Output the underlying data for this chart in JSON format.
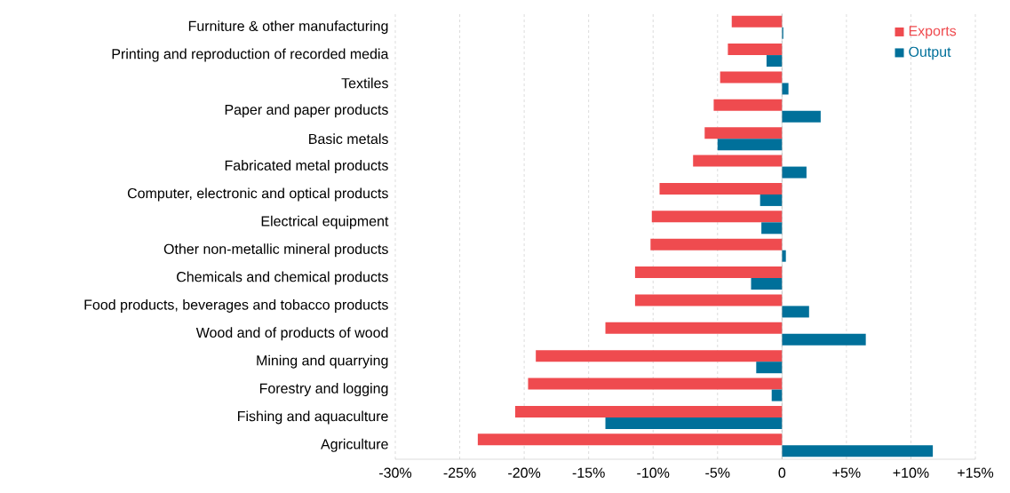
{
  "chart_data": {
    "type": "bar",
    "orientation": "horizontal",
    "categories": [
      "Furniture & other manufacturing",
      "Printing and reproduction of recorded media",
      "Textiles",
      "Paper and paper products",
      "Basic metals",
      "Fabricated metal products",
      "Computer, electronic and optical products",
      "Electrical equipment",
      "Other non-metallic mineral products",
      "Chemicals and chemical products",
      "Food products, beverages and tobacco products",
      "Wood and of products of wood",
      "Mining and quarrying",
      "Forestry and logging",
      "Fishing and aquaculture",
      "Agriculture"
    ],
    "series": [
      {
        "name": "Exports",
        "color": "#ef4b4f",
        "values": [
          -3.9,
          -4.2,
          -4.8,
          -5.3,
          -6.0,
          -6.9,
          -9.5,
          -10.1,
          -10.2,
          -11.4,
          -11.4,
          -13.7,
          -19.1,
          -19.7,
          -20.7,
          -23.6
        ]
      },
      {
        "name": "Output",
        "color": "#00709a",
        "values": [
          0.1,
          -1.2,
          0.5,
          3.0,
          -5.0,
          1.9,
          -1.7,
          -1.6,
          0.3,
          -2.4,
          2.1,
          6.5,
          -2.0,
          -0.8,
          -13.7,
          11.7
        ]
      }
    ],
    "xlim": [
      -30,
      15
    ],
    "xticks": [
      {
        "value": -30,
        "label": "-30%"
      },
      {
        "value": -25,
        "label": "-25%"
      },
      {
        "value": -20,
        "label": "-20%"
      },
      {
        "value": -15,
        "label": "-15%"
      },
      {
        "value": -10,
        "label": "-10%"
      },
      {
        "value": -5,
        "label": "-5%"
      },
      0,
      {
        "value": 5,
        "label": "+5%"
      },
      {
        "value": 10,
        "label": "+10%"
      },
      {
        "value": 15,
        "label": "+15%"
      }
    ],
    "grid": "x",
    "legend": "top right"
  }
}
